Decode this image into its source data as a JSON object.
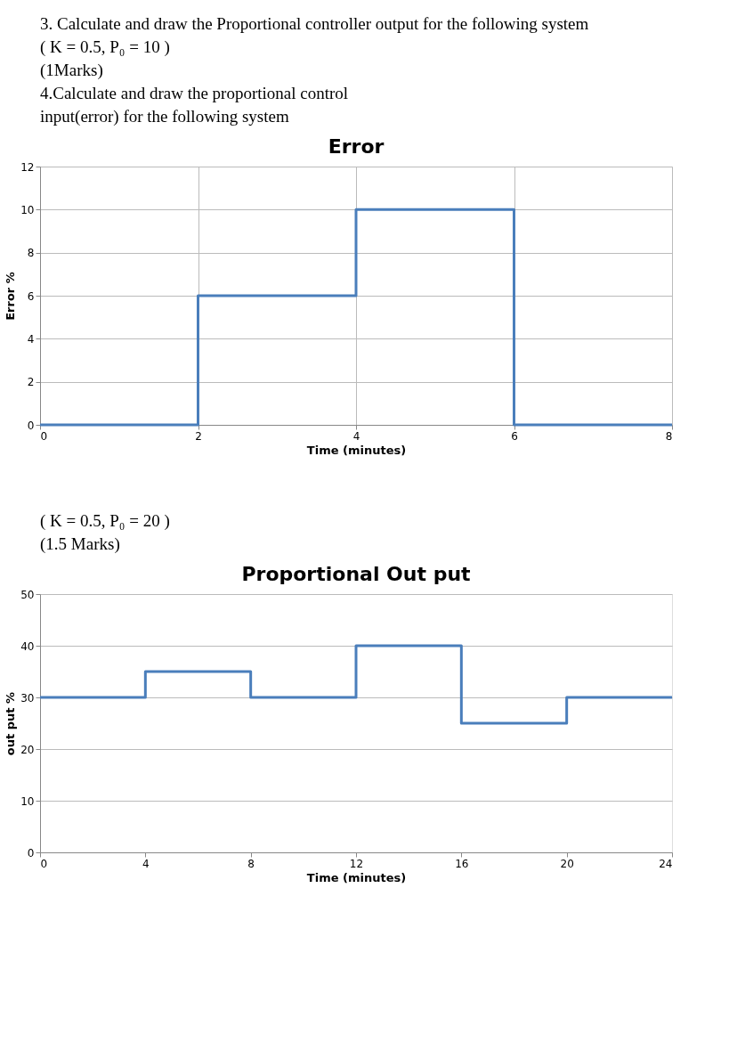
{
  "chart_data": [
    {
      "type": "step",
      "title": "Error",
      "xlabel": "Time (minutes)",
      "ylabel": "Error %",
      "annotations": [
        "3. Calculate and draw the Proportional controller output for the following system",
        "( K = 0.5, P₀ = 10 )",
        "(1Marks)",
        "4.Calculate and draw the proportional control",
        "input(error) for the following system"
      ],
      "x": [
        0,
        2,
        4,
        6,
        8
      ],
      "series": [
        {
          "color": "#4a7ebb",
          "values": [
            0,
            6,
            10,
            0,
            0
          ]
        }
      ],
      "xlim": [
        0,
        8
      ],
      "xticks": [
        0,
        2,
        4,
        6,
        8
      ],
      "ylim": [
        0,
        12
      ],
      "yticks": [
        0,
        2,
        4,
        6,
        8,
        10,
        12
      ],
      "grid": true,
      "marker": "none",
      "line_style": "solid"
    },
    {
      "type": "step",
      "title": "Proportional Out put",
      "xlabel": "Time (minutes)",
      "ylabel": "out put %",
      "annotations": [
        "( K = 0.5, P₀ = 20 )",
        "(1.5 Marks)"
      ],
      "x": [
        0,
        4,
        8,
        12,
        16,
        20,
        24
      ],
      "series": [
        {
          "color": "#4a7ebb",
          "values": [
            30,
            35,
            30,
            40,
            25,
            30,
            30
          ]
        }
      ],
      "xlim": [
        0,
        24
      ],
      "xticks": [
        0,
        4,
        8,
        12,
        16,
        20,
        24
      ],
      "ylim": [
        0,
        50
      ],
      "yticks": [
        0,
        10,
        20,
        30,
        40,
        50
      ],
      "grid": "y",
      "marker": "none",
      "line_style": "solid"
    }
  ]
}
